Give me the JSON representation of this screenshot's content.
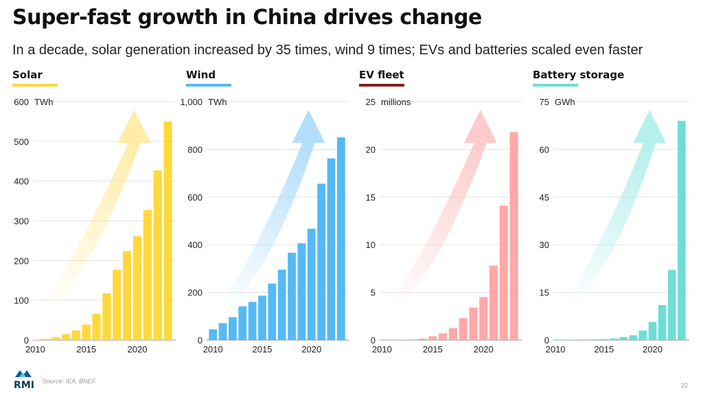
{
  "header": {
    "title": "Super-fast growth in China drives change",
    "subtitle": "In a decade, solar generation increased by 35 times, wind 9 times; EVs and batteries scaled even faster"
  },
  "footer": {
    "logo_text": "RMI",
    "source": "Source: IEA, BNEF.",
    "page_number": "22"
  },
  "chart_data": [
    {
      "type": "bar",
      "title": "Solar",
      "unit": "TWh",
      "color": "#FFD93B",
      "arrow_color": "#FFE999",
      "categories": [
        2010,
        2011,
        2012,
        2013,
        2014,
        2015,
        2016,
        2017,
        2018,
        2019,
        2020,
        2021,
        2022,
        2023
      ],
      "values": [
        1,
        3,
        7,
        15,
        24,
        39,
        66,
        118,
        177,
        224,
        261,
        327,
        427,
        550
      ],
      "ylim": [
        0,
        600
      ],
      "yticks": [
        0,
        100,
        200,
        300,
        400,
        500,
        600
      ],
      "ytick_labels": [
        "0",
        "100",
        "200",
        "300",
        "400",
        "500",
        "600"
      ],
      "xticks": [
        2010,
        2015,
        2020
      ],
      "grid": true
    },
    {
      "type": "bar",
      "title": "Wind",
      "unit": "TWh",
      "color": "#55B9F5",
      "arrow_color": "#A5D8FA",
      "categories": [
        2010,
        2011,
        2012,
        2013,
        2014,
        2015,
        2016,
        2017,
        2018,
        2019,
        2020,
        2021,
        2022,
        2023
      ],
      "values": [
        45,
        71,
        96,
        141,
        160,
        186,
        237,
        295,
        366,
        406,
        467,
        656,
        762,
        850
      ],
      "ylim": [
        0,
        1000
      ],
      "yticks": [
        0,
        200,
        400,
        600,
        800,
        1000
      ],
      "ytick_labels": [
        "0",
        "200",
        "400",
        "600",
        "800",
        "1,000"
      ],
      "xticks": [
        2010,
        2015,
        2020
      ],
      "grid": true
    },
    {
      "type": "bar",
      "title": "EV fleet",
      "unit": "millions",
      "color": "#FFA8A8",
      "arrow_color": "#FFC2C2",
      "underline_color": "#8B1A1A",
      "categories": [
        2010,
        2011,
        2012,
        2013,
        2014,
        2015,
        2016,
        2017,
        2018,
        2019,
        2020,
        2021,
        2022,
        2023
      ],
      "values": [
        0.01,
        0.02,
        0.04,
        0.06,
        0.15,
        0.4,
        0.7,
        1.25,
        2.3,
        3.4,
        4.5,
        7.8,
        14.1,
        21.8
      ],
      "ylim": [
        0,
        25
      ],
      "yticks": [
        0,
        5,
        10,
        15,
        20,
        25
      ],
      "ytick_labels": [
        "0",
        "5",
        "10",
        "15",
        "20",
        "25"
      ],
      "xticks": [
        2010,
        2015,
        2020
      ],
      "grid": true
    },
    {
      "type": "bar",
      "title": "Battery storage",
      "unit": "GWh",
      "color": "#6EDDD6",
      "arrow_color": "#A8EDE9",
      "categories": [
        2010,
        2011,
        2012,
        2013,
        2014,
        2015,
        2016,
        2017,
        2018,
        2019,
        2020,
        2021,
        2022,
        2023
      ],
      "values": [
        0.05,
        0.08,
        0.1,
        0.15,
        0.2,
        0.3,
        0.5,
        0.9,
        1.5,
        3.0,
        5.7,
        11.0,
        22.0,
        69.0
      ],
      "ylim": [
        0,
        75
      ],
      "yticks": [
        0,
        15,
        30,
        45,
        60,
        75
      ],
      "ytick_labels": [
        "0",
        "15",
        "30",
        "45",
        "60",
        "75"
      ],
      "xticks": [
        2010,
        2015,
        2020
      ],
      "grid": true
    }
  ]
}
